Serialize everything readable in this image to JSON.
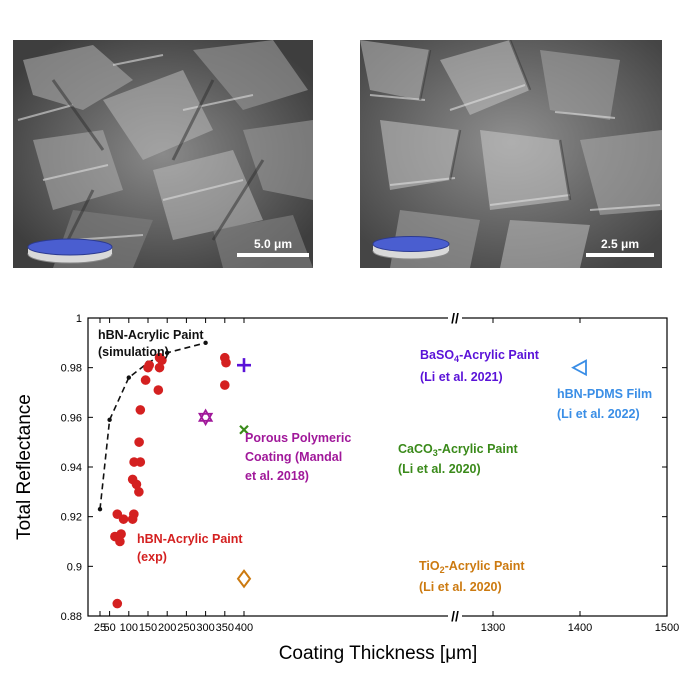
{
  "images": [
    {
      "scale_bar_label": "5.0 μm"
    },
    {
      "scale_bar_label": "2.5 μm"
    }
  ],
  "colors": {
    "red": "#d42020",
    "black": "#111111",
    "magenta": "#a0189a",
    "purple": "#5a12d8",
    "green": "#3a8a1a",
    "orange": "#cc7a10",
    "blue": "#3a8ee6",
    "disk_blue": "#4a5ed0"
  },
  "chart_data": {
    "type": "scatter",
    "xlabel": "Coating Thickness [μm]",
    "ylabel": "Total Reflectance",
    "ylim": [
      0.88,
      1.0
    ],
    "yticks": [
      "0.88",
      "0.9",
      "0.92",
      "0.94",
      "0.96",
      "0.98",
      "1"
    ],
    "x_axis_break": "broken axis between 400 and 1300",
    "xticks_left": [
      "25",
      "50",
      "100",
      "150",
      "200",
      "250",
      "300",
      "350",
      "400"
    ],
    "xticks_right": [
      "1300",
      "1400",
      "1500"
    ],
    "x_break_mark": "//",
    "series": [
      {
        "name": "hBN-Acrylic Paint (exp)",
        "marker": "circle",
        "color": "red",
        "points": [
          [
            70,
            0.921
          ],
          [
            70,
            0.912
          ],
          [
            70,
            0.885
          ],
          [
            80,
            0.919
          ],
          [
            80,
            0.913
          ],
          [
            80,
            0.91
          ],
          [
            110,
            0.935
          ],
          [
            110,
            0.921
          ],
          [
            110,
            0.919
          ],
          [
            120,
            0.942
          ],
          [
            120,
            0.933
          ],
          [
            120,
            0.93
          ],
          [
            130,
            0.963
          ],
          [
            130,
            0.95
          ],
          [
            130,
            0.942
          ],
          [
            150,
            0.981
          ],
          [
            150,
            0.98
          ],
          [
            150,
            0.975
          ],
          [
            180,
            0.984
          ],
          [
            180,
            0.983
          ],
          [
            180,
            0.98
          ],
          [
            180,
            0.971
          ],
          [
            350,
            0.984
          ],
          [
            350,
            0.982
          ],
          [
            350,
            0.973
          ]
        ]
      },
      {
        "name": "hBN-Acrylic Paint (simulation)",
        "marker": "dashed-line",
        "color": "black",
        "points": [
          [
            25,
            0.923
          ],
          [
            50,
            0.959
          ],
          [
            100,
            0.976
          ],
          [
            150,
            0.982
          ],
          [
            200,
            0.986
          ],
          [
            300,
            0.99
          ]
        ]
      },
      {
        "name": "Porous Polymeric Coating (Mandal et al. 2018)",
        "marker": "hexagram",
        "color": "magenta",
        "points": [
          [
            300,
            0.96
          ]
        ]
      },
      {
        "name": "BaSO4-Acrylic Paint (Li et al. 2021)",
        "marker": "plus",
        "color": "purple",
        "points": [
          [
            400,
            0.981
          ]
        ]
      },
      {
        "name": "CaCO3-Acrylic Paint (Li et al. 2020)",
        "marker": "x",
        "color": "green",
        "points": [
          [
            400,
            0.955
          ]
        ]
      },
      {
        "name": "TiO2-Acrylic Paint (Li et al. 2020)",
        "marker": "diamond",
        "color": "orange",
        "points": [
          [
            400,
            0.895
          ]
        ]
      },
      {
        "name": "hBN-PDMS Film (Li et al. 2022)",
        "marker": "left-triangle",
        "color": "blue",
        "points": [
          [
            1400,
            0.98
          ]
        ]
      }
    ],
    "annotations": {
      "sim_1": "hBN-Acrylic Paint",
      "sim_2": "(simulation)",
      "exp_1": "hBN-Acrylic Paint",
      "exp_2": "(exp)",
      "porous_1": "Porous Polymeric",
      "porous_2": "Coating (Mandal",
      "porous_3": "et al. 2018)",
      "baso4_pre": "BaSO",
      "baso4_sub": "4",
      "baso4_post": "-Acrylic Paint",
      "baso4_ref": "(Li et al. 2021)",
      "caco3_pre": "CaCO",
      "caco3_sub": "3",
      "caco3_post": "-Acrylic Paint",
      "caco3_ref": "(Li et al. 2020)",
      "tio2_pre": "TiO",
      "tio2_sub": "2",
      "tio2_post": "-Acrylic Paint",
      "tio2_ref": "(Li et al. 2020)",
      "pdms_1": "hBN-PDMS Film",
      "pdms_2": "(Li et al. 2022)"
    }
  }
}
